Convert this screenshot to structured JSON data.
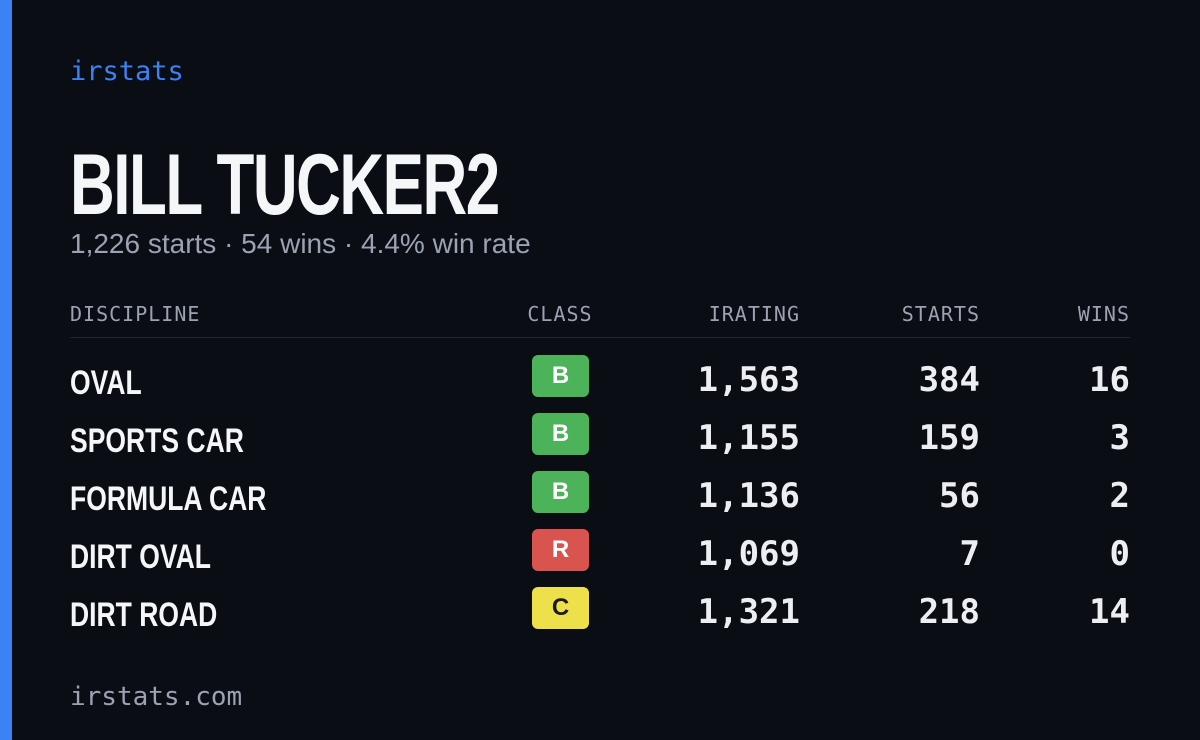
{
  "brand": "irstats",
  "title": "BILL TUCKER2",
  "subtitle": "1,226 starts · 54 wins · 4.4% win rate",
  "table": {
    "columns": [
      "DISCIPLINE",
      "CLASS",
      "IRATING",
      "STARTS",
      "WINS"
    ],
    "rows": [
      {
        "discipline": "OVAL",
        "class": "B",
        "class_color": "#4cb35a",
        "irating": "1,563",
        "starts": "384",
        "wins": "16"
      },
      {
        "discipline": "SPORTS CAR",
        "class": "B",
        "class_color": "#4cb35a",
        "irating": "1,155",
        "starts": "159",
        "wins": "3"
      },
      {
        "discipline": "FORMULA CAR",
        "class": "B",
        "class_color": "#4cb35a",
        "irating": "1,136",
        "starts": "56",
        "wins": "2"
      },
      {
        "discipline": "DIRT OVAL",
        "class": "R",
        "class_color": "#d9534f",
        "irating": "1,069",
        "starts": "7",
        "wins": "0"
      },
      {
        "discipline": "DIRT ROAD",
        "class": "C",
        "class_color": "#ede04a",
        "irating": "1,321",
        "starts": "218",
        "wins": "14"
      }
    ]
  },
  "footer": "irstats.com"
}
